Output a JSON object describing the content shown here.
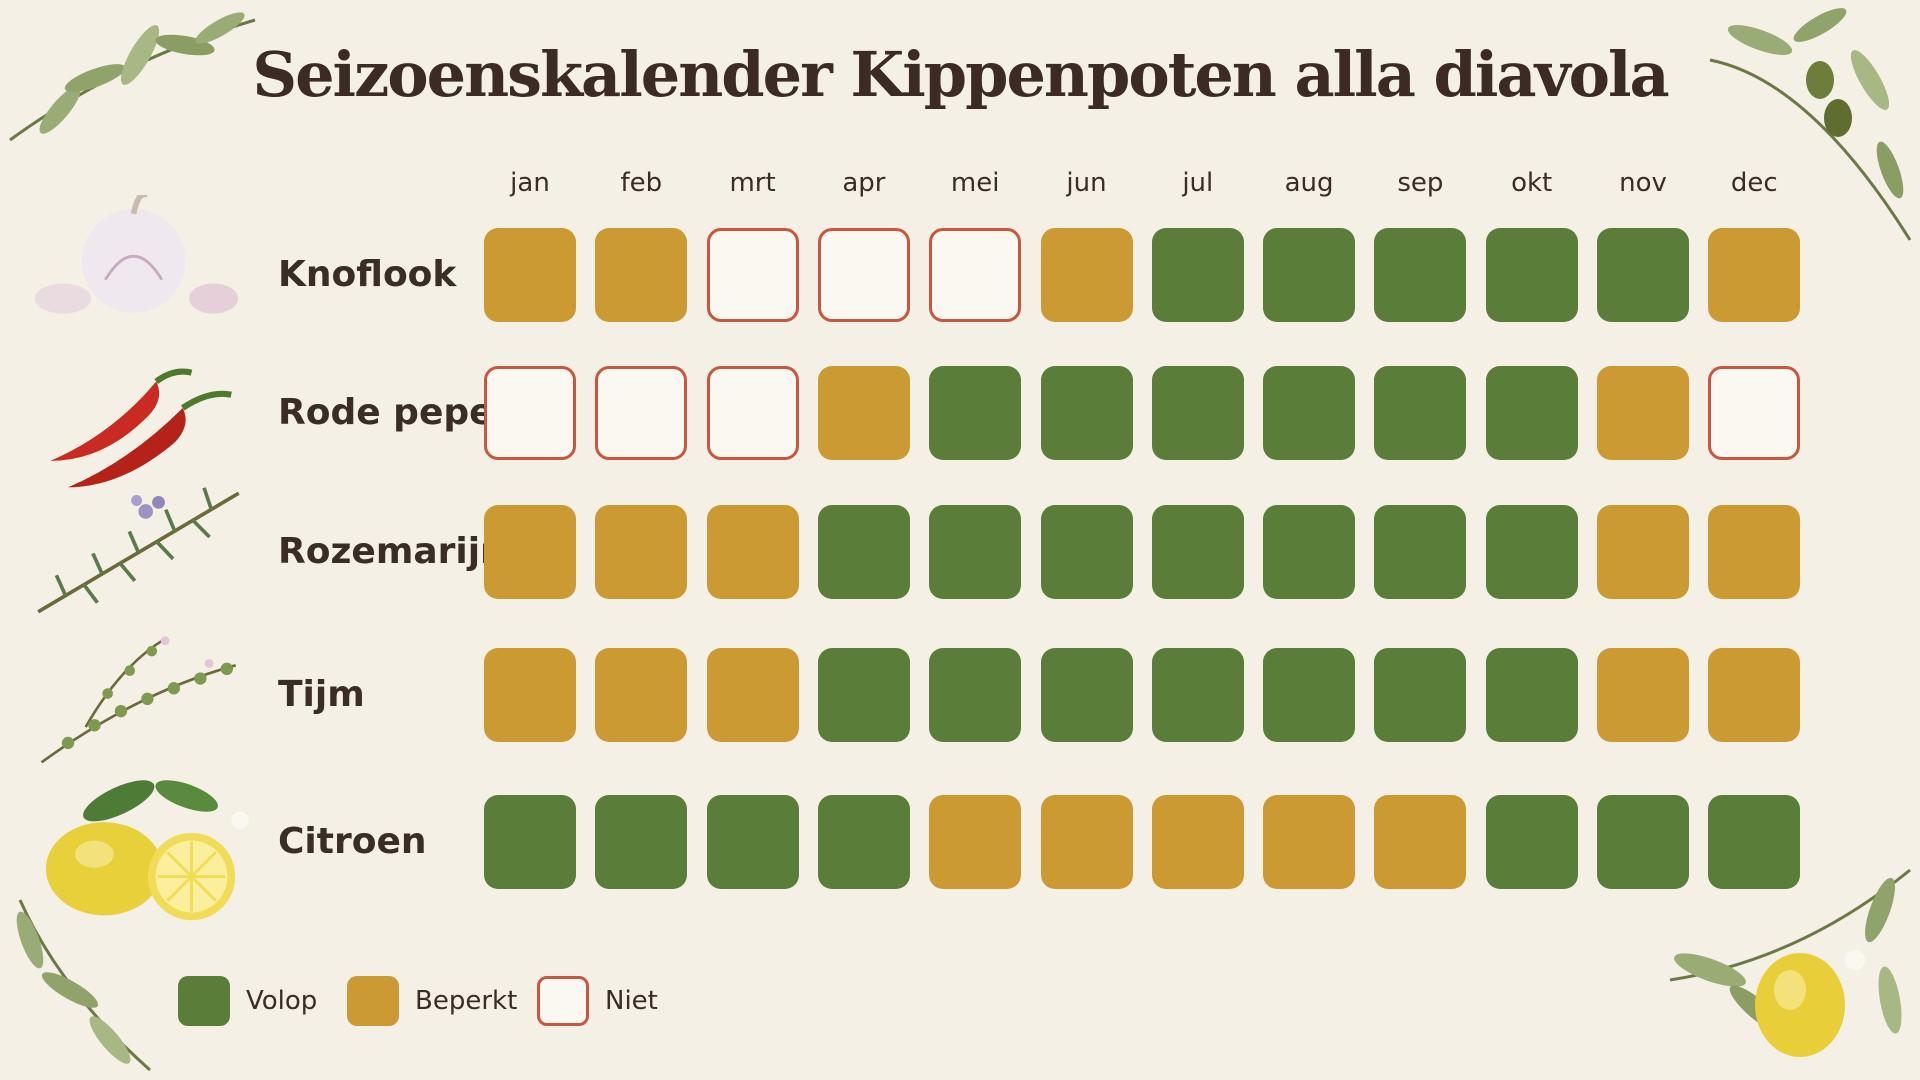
{
  "title": "Seizoenskalender Kippenpoten alla diavola",
  "chart_data": {
    "type": "heatmap",
    "title": "Seizoenskalender Kippenpoten alla diavola",
    "columns": [
      "jan",
      "feb",
      "mrt",
      "apr",
      "mei",
      "jun",
      "jul",
      "aug",
      "sep",
      "okt",
      "nov",
      "dec"
    ],
    "rows": [
      {
        "name": "Knoflook",
        "icon": "garlic-icon",
        "values": [
          "beperkt",
          "beperkt",
          "niet",
          "niet",
          "niet",
          "beperkt",
          "volop",
          "volop",
          "volop",
          "volop",
          "volop",
          "beperkt"
        ]
      },
      {
        "name": "Rode peper",
        "icon": "red-pepper-icon",
        "values": [
          "niet",
          "niet",
          "niet",
          "beperkt",
          "volop",
          "volop",
          "volop",
          "volop",
          "volop",
          "volop",
          "beperkt",
          "niet"
        ]
      },
      {
        "name": "Rozemarijn",
        "icon": "rosemary-icon",
        "values": [
          "beperkt",
          "beperkt",
          "beperkt",
          "volop",
          "volop",
          "volop",
          "volop",
          "volop",
          "volop",
          "volop",
          "beperkt",
          "beperkt"
        ]
      },
      {
        "name": "Tijm",
        "icon": "thyme-icon",
        "values": [
          "beperkt",
          "beperkt",
          "beperkt",
          "volop",
          "volop",
          "volop",
          "volop",
          "volop",
          "volop",
          "volop",
          "beperkt",
          "beperkt"
        ]
      },
      {
        "name": "Citroen",
        "icon": "lemon-icon",
        "values": [
          "volop",
          "volop",
          "volop",
          "volop",
          "beperkt",
          "beperkt",
          "beperkt",
          "beperkt",
          "beperkt",
          "volop",
          "volop",
          "volop"
        ]
      }
    ],
    "legend": [
      {
        "key": "volop",
        "label": "Volop",
        "color": "#5a7d3a"
      },
      {
        "key": "beperkt",
        "label": "Beperkt",
        "color": "#cc9a33"
      },
      {
        "key": "niet",
        "label": "Niet",
        "color": "#c9573f"
      }
    ],
    "legend_position": "bottom-left"
  }
}
